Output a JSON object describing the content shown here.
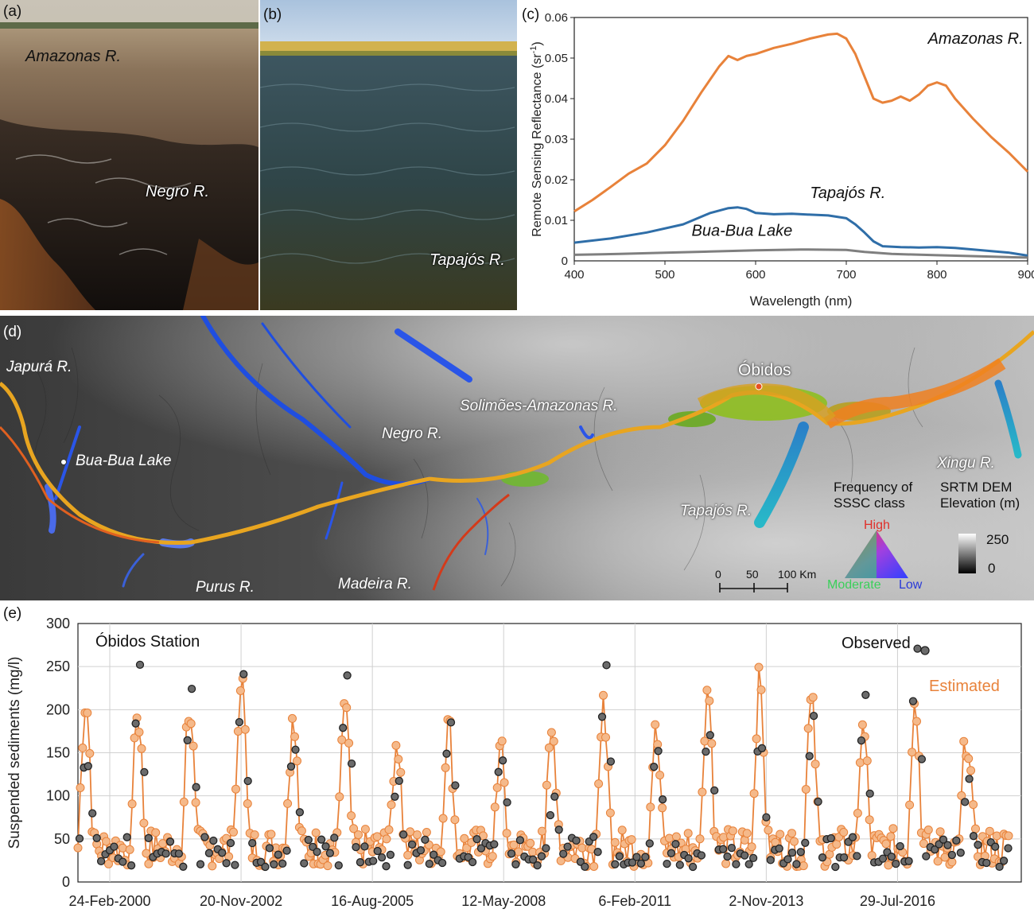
{
  "panel_a": {
    "label": "(a)",
    "captions": {
      "amazonas": "Amazonas R.",
      "negro": "Negro R."
    }
  },
  "panel_b": {
    "label": "(b)",
    "caption": "Tapajós R."
  },
  "panel_c": {
    "label": "(c)",
    "chart_data": {
      "type": "line",
      "xlabel": "Wavelength (nm)",
      "ylabel_main": "Remote Sensing Reflectance (sr",
      "ylabel_sup": "-1",
      "ylabel_end": ")",
      "xlim": [
        400,
        900
      ],
      "ylim": [
        0,
        0.06
      ],
      "xticks": [
        "400",
        "500",
        "600",
        "700",
        "800",
        "900"
      ],
      "yticks": [
        "0",
        "0.01",
        "0.02",
        "0.03",
        "0.04",
        "0.05",
        "0.06"
      ],
      "series": [
        {
          "name": "Amazonas R.",
          "color": "#E8823A",
          "x": [
            400,
            420,
            440,
            460,
            480,
            500,
            520,
            540,
            560,
            570,
            580,
            590,
            600,
            620,
            640,
            660,
            680,
            690,
            700,
            710,
            720,
            730,
            740,
            750,
            760,
            770,
            780,
            790,
            800,
            810,
            820,
            840,
            860,
            880,
            900
          ],
          "y": [
            0.0122,
            0.015,
            0.0182,
            0.0215,
            0.024,
            0.0285,
            0.0345,
            0.0415,
            0.048,
            0.0505,
            0.0495,
            0.0505,
            0.051,
            0.0525,
            0.0535,
            0.0548,
            0.0558,
            0.056,
            0.0548,
            0.051,
            0.0455,
            0.04,
            0.039,
            0.0395,
            0.0405,
            0.0395,
            0.041,
            0.0432,
            0.044,
            0.0432,
            0.04,
            0.035,
            0.0305,
            0.0265,
            0.022
          ]
        },
        {
          "name": "Tapajós R.",
          "color": "#2F6EA8",
          "x": [
            400,
            440,
            480,
            520,
            550,
            570,
            580,
            590,
            600,
            620,
            640,
            660,
            680,
            700,
            710,
            720,
            730,
            740,
            760,
            780,
            800,
            820,
            840,
            860,
            880,
            900
          ],
          "y": [
            0.0045,
            0.0055,
            0.007,
            0.009,
            0.0118,
            0.013,
            0.0132,
            0.0128,
            0.0118,
            0.0115,
            0.0116,
            0.0114,
            0.0112,
            0.0105,
            0.009,
            0.007,
            0.0048,
            0.0036,
            0.0034,
            0.0033,
            0.0034,
            0.0032,
            0.0028,
            0.0024,
            0.002,
            0.0013
          ]
        },
        {
          "name": "Bua-Bua Lake",
          "color": "#7F7F7F",
          "x": [
            400,
            450,
            500,
            550,
            600,
            650,
            700,
            720,
            750,
            800,
            850,
            900
          ],
          "y": [
            0.0015,
            0.0017,
            0.002,
            0.0023,
            0.0026,
            0.0028,
            0.0027,
            0.0022,
            0.0017,
            0.0014,
            0.0011,
            0.0008
          ]
        }
      ]
    }
  },
  "panel_d": {
    "label": "(d)",
    "labels": {
      "japura": "Japurá R.",
      "bua": "Bua-Bua Lake",
      "negro": "Negro R.",
      "solimoes": "Solimões-Amazonas R.",
      "obidos": "Óbidos",
      "tapajos": "Tapajós R.",
      "xingu": "Xingu R.",
      "purus": "Purus R.",
      "madeira": "Madeira R."
    },
    "legend": {
      "freq_title_1": "Frequency of",
      "freq_title_2": "SSSC class",
      "high": "High",
      "moderate": "Moderate",
      "low": "Low",
      "dem_title_1": "SRTM DEM",
      "dem_title_2": "Elevation (m)",
      "dem_max": "250",
      "dem_min": "0",
      "scale_ticks": [
        "0",
        "50",
        "100 Km"
      ]
    }
  },
  "panel_e": {
    "label": "(e)",
    "station": "Óbidos Station",
    "legend_observed": "Observed",
    "legend_estimated": "Estimated",
    "chart_data": {
      "type": "line",
      "ylabel": "Suspended sediments (mg/l)",
      "ylim": [
        0,
        300
      ],
      "yticks": [
        "0",
        "50",
        "100",
        "150",
        "200",
        "250",
        "300"
      ],
      "xtick_labels": [
        "24-Feb-2000",
        "20-Nov-2002",
        "16-Aug-2005",
        "12-May-2008",
        "6-Feb-2011",
        "2-Nov-2013",
        "29-Jul-2016"
      ],
      "x_range_years": [
        2000.0,
        2018.2
      ],
      "year_peaks": [
        {
          "year": 2000,
          "obs_peak": 150,
          "est_peak": 210
        },
        {
          "year": 2001,
          "obs_peak": 250,
          "est_peak": 200
        },
        {
          "year": 2002,
          "obs_peak": 225,
          "est_peak": 205
        },
        {
          "year": 2003,
          "obs_peak": 255,
          "est_peak": 240
        },
        {
          "year": 2004,
          "obs_peak": 155,
          "est_peak": 180
        },
        {
          "year": 2005,
          "obs_peak": 245,
          "est_peak": 200
        },
        {
          "year": 2006,
          "obs_peak": 125,
          "est_peak": 165
        },
        {
          "year": 2007,
          "obs_peak": 185,
          "est_peak": 180
        },
        {
          "year": 2008,
          "obs_peak": 145,
          "est_peak": 150
        },
        {
          "year": 2009,
          "obs_peak": 115,
          "est_peak": 170
        },
        {
          "year": 2010,
          "obs_peak": 255,
          "est_peak": 200
        },
        {
          "year": 2011,
          "obs_peak": 165,
          "est_peak": 170
        },
        {
          "year": 2012,
          "obs_peak": 185,
          "est_peak": 225
        },
        {
          "year": 2013,
          "obs_peak": 175,
          "est_peak": 230
        },
        {
          "year": 2014,
          "obs_peak": 200,
          "est_peak": 205
        },
        {
          "year": 2015,
          "obs_peak": 230,
          "est_peak": 175
        },
        {
          "year": 2016,
          "obs_peak": 268,
          "est_peak": 205
        },
        {
          "year": 2017,
          "obs_peak": 115,
          "est_peak": 170
        }
      ]
    }
  }
}
